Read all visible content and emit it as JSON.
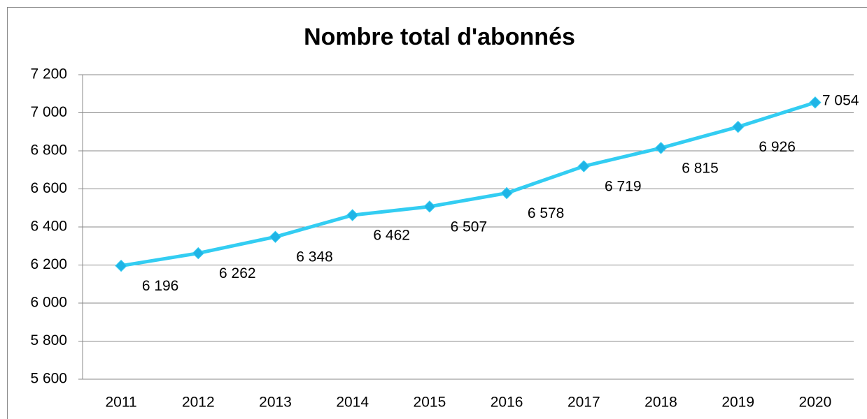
{
  "chart_data": {
    "type": "line",
    "title": "Nombre total d'abonnés",
    "categories": [
      "2011",
      "2012",
      "2013",
      "2014",
      "2015",
      "2016",
      "2017",
      "2018",
      "2019",
      "2020"
    ],
    "series": [
      {
        "name": "Nombre total d'abonnés",
        "color": "#33cdf2",
        "values": [
          6196,
          6262,
          6348,
          6462,
          6507,
          6578,
          6719,
          6815,
          6926,
          7054
        ],
        "value_labels": [
          "6 196",
          "6 262",
          "6 348",
          "6 462",
          "6 507",
          "6 578",
          "6 719",
          "6 815",
          "6 926",
          "7 054"
        ]
      }
    ],
    "ylim": [
      5600,
      7200
    ],
    "yticks": [
      {
        "value": 5600,
        "label": "5 600"
      },
      {
        "value": 5800,
        "label": "5 800"
      },
      {
        "value": 6000,
        "label": "6 000"
      },
      {
        "value": 6200,
        "label": "6 200"
      },
      {
        "value": 6400,
        "label": "6 400"
      },
      {
        "value": 6600,
        "label": "6 600"
      },
      {
        "value": 6800,
        "label": "6 800"
      },
      {
        "value": 7000,
        "label": "7 000"
      },
      {
        "value": 7200,
        "label": "7 200"
      }
    ],
    "grid": true
  }
}
